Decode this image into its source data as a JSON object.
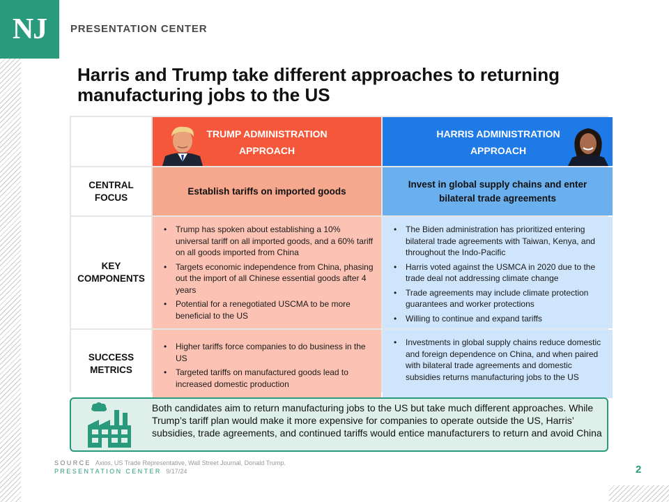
{
  "brand": {
    "logo_text": "NJ",
    "header_title": "PRESENTATION CENTER",
    "accent": "#2a9a7c"
  },
  "headline": "Harris and Trump take different approaches to returning manufacturing jobs to the US",
  "columns": {
    "trump": {
      "title_line1": "TRUMP ADMINISTRATION",
      "title_line2": "APPROACH",
      "color": "#f4573a"
    },
    "harris": {
      "title_line1": "HARRIS ADMINISTRATION",
      "title_line2": "APPROACH",
      "color": "#1e7ae6"
    }
  },
  "rows": {
    "central_focus": {
      "label_line1": "CENTRAL",
      "label_line2": "FOCUS",
      "trump": "Establish tariffs on imported goods",
      "harris": "Invest in global supply chains and enter bilateral trade agreements"
    },
    "key_components": {
      "label_line1": "KEY",
      "label_line2": "COMPONENTS",
      "trump": [
        "Trump has spoken about establishing a 10% universal tariff on all imported goods, and a 60% tariff on all goods imported from China",
        "Targets economic independence from China, phasing out the import of all Chinese essential goods after 4 years",
        "Potential for a renegotiated USCMA to be more beneficial to the US"
      ],
      "harris": [
        "The Biden administration has prioritized entering bilateral trade agreements with Taiwan, Kenya, and throughout the Indo-Pacific",
        "Harris voted against the USMCA in 2020 due to the trade deal not addressing climate change",
        "Trade agreements may include climate protection guarantees and worker protections",
        "Willing to continue and expand tariffs"
      ]
    },
    "success_metrics": {
      "label_line1": "SUCCESS",
      "label_line2": "METRICS",
      "trump": [
        "Higher tariffs force companies to do business in the US",
        "Targeted tariffs on manufactured goods lead to increased domestic production"
      ],
      "harris": [
        "Investments in global supply chains reduce domestic and foreign dependence on China, and when paired with bilateral trade agreements and domestic subsidies returns manufacturing jobs to the US"
      ]
    }
  },
  "summary": {
    "icon": "factory-icon",
    "text": "Both candidates aim to return manufacturing jobs to the US but take much different approaches. While Trump’s tariff plan would make it more expensive for companies to operate outside the US, Harris’ subsidies, trade agreements, and continued tariffs would entice manufacturers to return and avoid China"
  },
  "footer": {
    "source_label": "SOURCE",
    "source_text": "Axios, US Trade Representative, Wall Street Journal, Donald Trump.",
    "pc_label": "PRESENTATION CENTER",
    "date": "9/17/24",
    "page_number": "2"
  }
}
